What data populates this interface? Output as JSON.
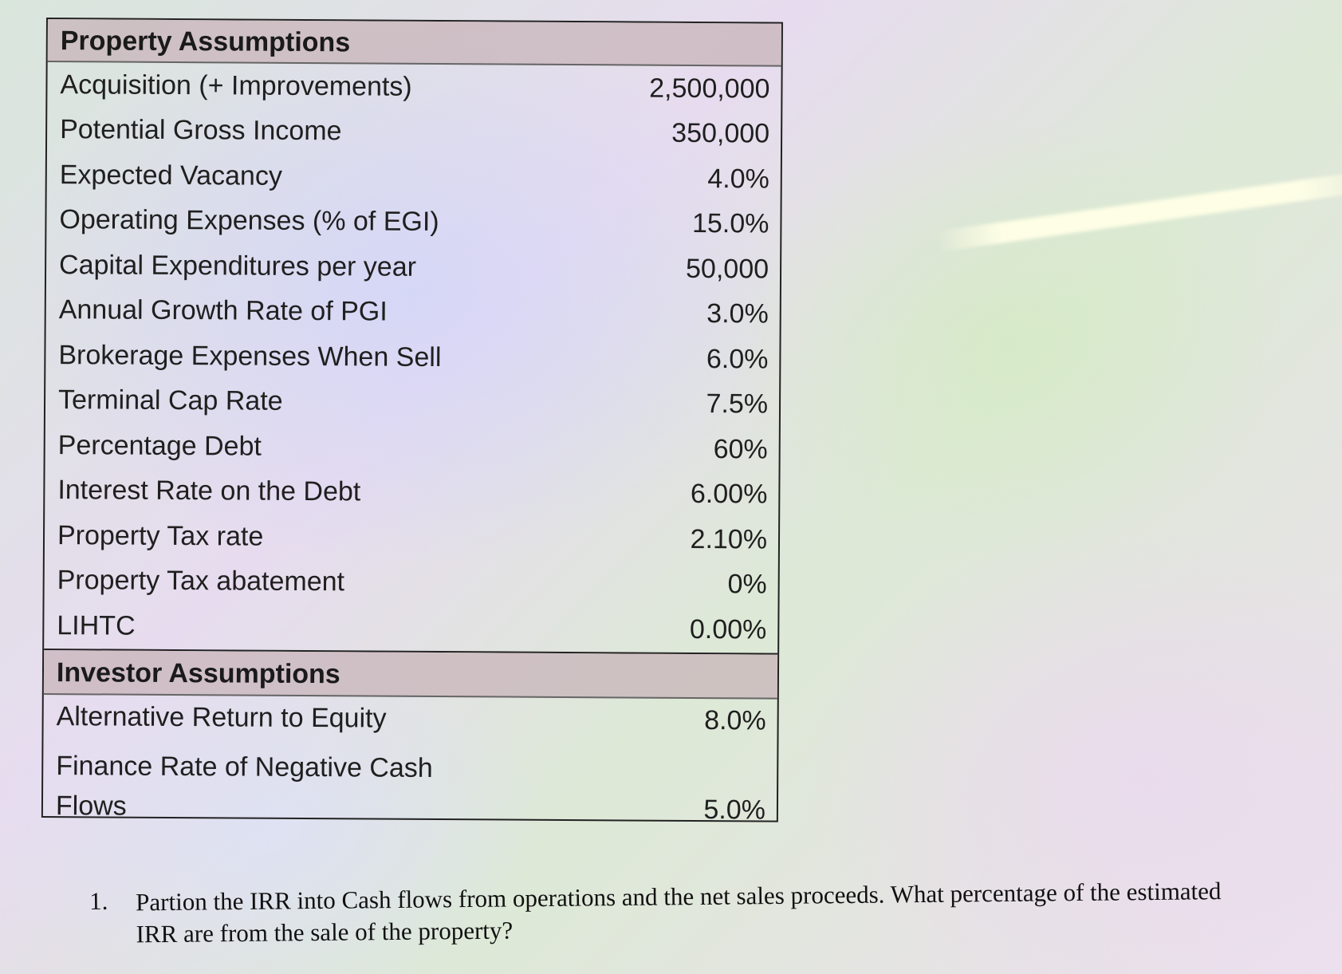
{
  "property": {
    "title": "Property Assumptions",
    "rows": [
      {
        "label": "Acquisition (+ Improvements)",
        "value": "2,500,000"
      },
      {
        "label": "Potential Gross Income",
        "value": "350,000"
      },
      {
        "label": "Expected Vacancy",
        "value": "4.0%"
      },
      {
        "label": "Operating Expenses (% of EGI)",
        "value": "15.0%"
      },
      {
        "label": "Capital Expenditures per year",
        "value": "50,000"
      },
      {
        "label": "Annual Growth Rate of PGI",
        "value": "3.0%"
      },
      {
        "label": "Brokerage Expenses When Sell",
        "value": "6.0%"
      },
      {
        "label": "Terminal Cap Rate",
        "value": "7.5%"
      },
      {
        "label": "Percentage Debt",
        "value": "60%"
      },
      {
        "label": "Interest Rate on the Debt",
        "value": "6.00%"
      },
      {
        "label": "Property Tax rate",
        "value": "2.10%"
      },
      {
        "label": "Property Tax abatement",
        "value": "0%"
      },
      {
        "label": "LIHTC",
        "value": "0.00%"
      }
    ]
  },
  "investor": {
    "title": "Investor Assumptions",
    "rows": [
      {
        "label": "Alternative Return to Equity",
        "value": "8.0%"
      },
      {
        "label_line1": "Finance Rate of Negative Cash",
        "label_line2": "Flows",
        "value": "5.0%"
      }
    ]
  },
  "question": {
    "number": "1.",
    "text": "Partion the IRR into Cash flows from operations and the net sales proceeds.  What percentage of the estimated IRR are from the sale of the property?"
  }
}
